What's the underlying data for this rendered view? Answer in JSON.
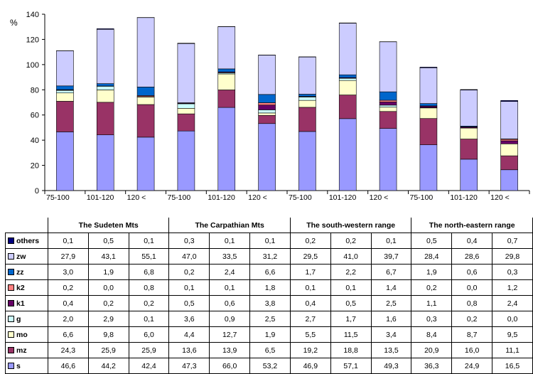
{
  "chart_data": {
    "type": "bar",
    "stacked": true,
    "ylabel": "%",
    "ylim": [
      0,
      140
    ],
    "yticks": [
      0,
      20,
      40,
      60,
      80,
      100,
      120,
      140
    ],
    "grid": false,
    "categories": [
      "75-100",
      "101-120",
      "120 <",
      "75-100",
      "101-120",
      "120 <",
      "75-100",
      "101-120",
      "120 <",
      "75-100",
      "101-120",
      "120 <"
    ],
    "groups": [
      "The Sudeten Mts",
      "The Carpathian Mts",
      "The south-western range",
      "The north-eastern range"
    ],
    "series": [
      {
        "name": "s",
        "color": "#9999ff",
        "values": [
          "46,6",
          "44,2",
          "42,4",
          "47,3",
          "66,0",
          "53,2",
          "46,9",
          "57,1",
          "49,3",
          "36,3",
          "24,9",
          "16,5"
        ]
      },
      {
        "name": "mz",
        "color": "#993366",
        "values": [
          "24,3",
          "25,9",
          "25,9",
          "13,6",
          "13,9",
          "6,5",
          "19,2",
          "18,8",
          "13,5",
          "20,9",
          "16,0",
          "11,1"
        ]
      },
      {
        "name": "mo",
        "color": "#ffffcc",
        "values": [
          "6,6",
          "9,8",
          "6,0",
          "4,4",
          "12,7",
          "1,9",
          "5,5",
          "11,5",
          "3,4",
          "8,4",
          "8,7",
          "9,5"
        ]
      },
      {
        "name": "g",
        "color": "#ccffff",
        "values": [
          "2,0",
          "2,9",
          "0,1",
          "3,6",
          "0,9",
          "2,5",
          "2,7",
          "1,7",
          "1,6",
          "0,3",
          "0,2",
          "0,0"
        ]
      },
      {
        "name": "k1",
        "color": "#660066",
        "values": [
          "0,4",
          "0,2",
          "0,2",
          "0,5",
          "0,6",
          "3,8",
          "0,4",
          "0,5",
          "2,5",
          "1,1",
          "0,8",
          "2,4"
        ]
      },
      {
        "name": "k2",
        "color": "#ff8080",
        "values": [
          "0,2",
          "0,0",
          "0,8",
          "0,1",
          "0,1",
          "1,8",
          "0,1",
          "0,1",
          "1,4",
          "0,2",
          "0,0",
          "1,2"
        ]
      },
      {
        "name": "zz",
        "color": "#0066cc",
        "values": [
          "3,0",
          "1,9",
          "6,8",
          "0,2",
          "2,4",
          "6,6",
          "1,7",
          "2,2",
          "6,7",
          "1,9",
          "0,6",
          "0,3"
        ]
      },
      {
        "name": "zw",
        "color": "#ccccff",
        "values": [
          "27,9",
          "43,1",
          "55,1",
          "47,0",
          "33,5",
          "31,2",
          "29,5",
          "41,0",
          "39,7",
          "28,4",
          "28,6",
          "29,8"
        ]
      },
      {
        "name": "others",
        "color": "#000080",
        "values": [
          "0,1",
          "0,5",
          "0,1",
          "0,3",
          "0,1",
          "0,1",
          "0,2",
          "0,2",
          "0,1",
          "0,5",
          "0,4",
          "0,7"
        ]
      }
    ]
  }
}
